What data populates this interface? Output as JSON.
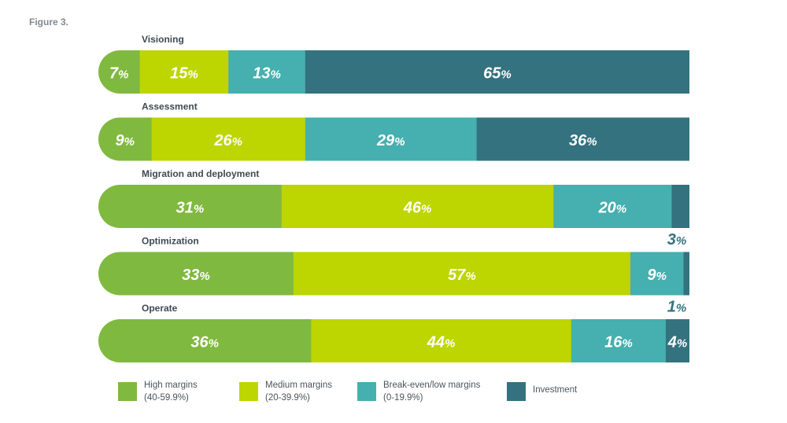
{
  "figure_label": "Figure 3.",
  "chart_data": {
    "type": "bar",
    "orientation": "horizontal",
    "stacked": "percent",
    "categories": [
      "Visioning",
      "Assessment",
      "Migration and deployment",
      "Optimization",
      "Operate"
    ],
    "series": [
      {
        "name": "High margins (40-59.9%)",
        "values": [
          7,
          9,
          31,
          33,
          36
        ]
      },
      {
        "name": "Medium margins (20-39.9%)",
        "values": [
          15,
          26,
          46,
          57,
          44
        ]
      },
      {
        "name": "Break-even/low margins (0-19.9%)",
        "values": [
          13,
          29,
          20,
          9,
          16
        ]
      },
      {
        "name": "Investment",
        "values": [
          65,
          36,
          3,
          1,
          4
        ]
      }
    ],
    "value_labels": [
      [
        "7",
        "15",
        "13",
        "65"
      ],
      [
        "9",
        "26",
        "29",
        "36"
      ],
      [
        "31",
        "46",
        "20",
        "3"
      ],
      [
        "33",
        "57",
        "9",
        "1"
      ],
      [
        "36",
        "44",
        "16",
        "4"
      ]
    ],
    "percent_sign": "%",
    "title": "",
    "xlabel": "",
    "ylabel": "",
    "legend_position": "bottom"
  },
  "legend": [
    {
      "line1": "High margins",
      "line2": "(40-59.9%)",
      "color": "#80b93f"
    },
    {
      "line1": "Medium margins",
      "line2": "(20-39.9%)",
      "color": "#bdd500"
    },
    {
      "line1": "Break-even/low margins",
      "line2": "(0-19.9%)",
      "color": "#46afaf"
    },
    {
      "line1": "Investment",
      "line2": "",
      "color": "#33727e"
    }
  ],
  "colors": [
    "#80b93f",
    "#bdd500",
    "#46afaf",
    "#33727e"
  ]
}
